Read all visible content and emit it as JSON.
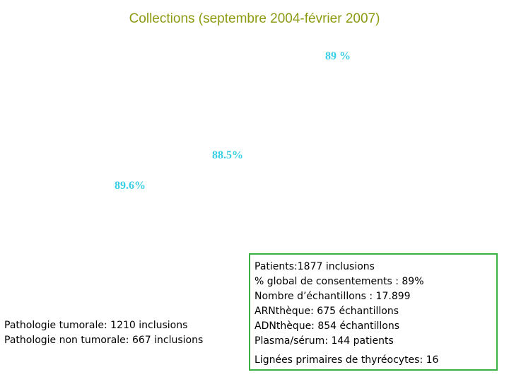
{
  "title": "Collections (septembre 2004-février 2007)",
  "percent_labels": [
    "89 %",
    "88.5%",
    "89.6%"
  ],
  "left_lines": [
    "Pathologie tumorale: 1210 inclusions",
    "Pathologie non tumorale: 667 inclusions"
  ],
  "box_lines": [
    "Patients:1877 inclusions",
    "% global de consentements : 89%",
    "Nombre d’échantillons : 17.899",
    "ARNthèque: 675 échantillons",
    "ADNthèque: 854 échantillons",
    "Plasma/sérum: 144 patients",
    "Lignées primaires de thyréocytes: 16"
  ]
}
